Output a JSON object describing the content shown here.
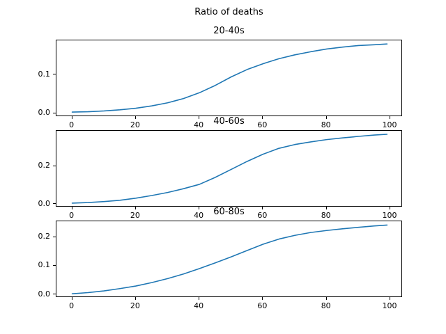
{
  "figure": {
    "title": "Ratio of deaths",
    "background_color": "#ffffff",
    "text_color": "#000000"
  },
  "chart_data": [
    {
      "type": "line",
      "title": "20-40s",
      "x": [
        0,
        5,
        10,
        15,
        20,
        25,
        30,
        35,
        40,
        45,
        50,
        55,
        60,
        65,
        70,
        75,
        80,
        85,
        90,
        95,
        99
      ],
      "y": [
        0.003,
        0.004,
        0.006,
        0.009,
        0.013,
        0.019,
        0.027,
        0.038,
        0.053,
        0.072,
        0.094,
        0.113,
        0.128,
        0.141,
        0.151,
        0.159,
        0.166,
        0.171,
        0.175,
        0.177,
        0.179
      ],
      "xlabel": "",
      "ylabel": "",
      "xlim": [
        -4.95,
        103.95
      ],
      "ylim": [
        -0.0094,
        0.1884
      ],
      "xticks": [
        0,
        20,
        40,
        60,
        80,
        100
      ],
      "xtick_labels": [
        "0",
        "20",
        "40",
        "60",
        "80",
        "100"
      ],
      "yticks": [
        0.0,
        0.1
      ],
      "ytick_labels": [
        "0.0",
        "0.1"
      ],
      "line_color": "#1f77b4",
      "grid": false,
      "legend": null
    },
    {
      "type": "line",
      "title": "40-60s",
      "x": [
        0,
        5,
        10,
        15,
        20,
        25,
        30,
        35,
        40,
        45,
        50,
        55,
        60,
        65,
        70,
        75,
        80,
        85,
        90,
        95,
        99
      ],
      "y": [
        0.004,
        0.007,
        0.012,
        0.019,
        0.03,
        0.044,
        0.06,
        0.08,
        0.103,
        0.14,
        0.182,
        0.224,
        0.262,
        0.293,
        0.313,
        0.327,
        0.339,
        0.348,
        0.356,
        0.363,
        0.367
      ],
      "xlabel": "",
      "ylabel": "",
      "xlim": [
        -4.95,
        103.95
      ],
      "ylim": [
        -0.0184,
        0.3854
      ],
      "xticks": [
        0,
        20,
        40,
        60,
        80,
        100
      ],
      "xtick_labels": [
        "0",
        "20",
        "40",
        "60",
        "80",
        "100"
      ],
      "yticks": [
        0.0,
        0.2
      ],
      "ytick_labels": [
        "0.0",
        "0.2"
      ],
      "line_color": "#1f77b4",
      "grid": false,
      "legend": null
    },
    {
      "type": "line",
      "title": "60-80s",
      "x": [
        0,
        5,
        10,
        15,
        20,
        25,
        30,
        35,
        40,
        45,
        50,
        55,
        60,
        65,
        70,
        75,
        80,
        85,
        90,
        95,
        99
      ],
      "y": [
        0.002,
        0.006,
        0.012,
        0.02,
        0.029,
        0.041,
        0.055,
        0.071,
        0.09,
        0.11,
        0.131,
        0.153,
        0.175,
        0.193,
        0.206,
        0.216,
        0.223,
        0.229,
        0.234,
        0.239,
        0.242
      ],
      "xlabel": "",
      "ylabel": "",
      "xlim": [
        -4.95,
        103.95
      ],
      "ylim": [
        -0.0122,
        0.2552
      ],
      "xticks": [
        0,
        20,
        40,
        60,
        80,
        100
      ],
      "xtick_labels": [
        "0",
        "20",
        "40",
        "60",
        "80",
        "100"
      ],
      "yticks": [
        0.0,
        0.1,
        0.2
      ],
      "ytick_labels": [
        "0.0",
        "0.1",
        "0.2"
      ],
      "line_color": "#1f77b4",
      "grid": false,
      "legend": null
    }
  ]
}
